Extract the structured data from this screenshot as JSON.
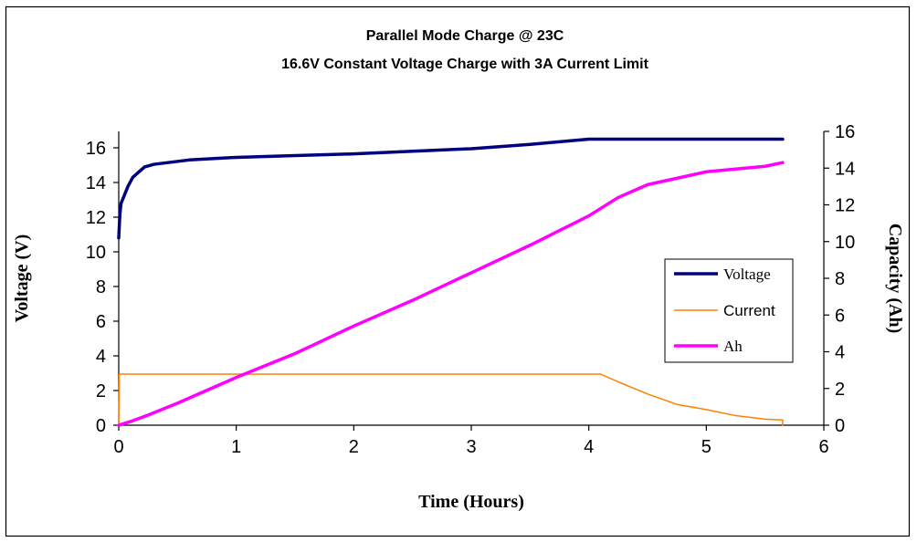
{
  "chart_data": {
    "type": "line",
    "title": "Parallel Mode Charge @ 23C",
    "subtitle": "16.6V Constant Voltage Charge with 3A Current Limit",
    "xlabel": "Time (Hours)",
    "ylabel": "Voltage (V)",
    "y2label": "Capacity (Ah)",
    "xlim": [
      0,
      6
    ],
    "ylim": [
      0,
      17
    ],
    "y2lim": [
      0,
      16
    ],
    "xticks": [
      0,
      1,
      2,
      3,
      4,
      5,
      6
    ],
    "yticks": [
      0,
      2,
      4,
      6,
      8,
      10,
      12,
      14,
      16
    ],
    "y2ticks": [
      0,
      2,
      4,
      6,
      8,
      10,
      12,
      14,
      16
    ],
    "grid": false,
    "legend_position": "right",
    "series": [
      {
        "name": "Voltage",
        "axis": "left",
        "color": "#000080",
        "points": [
          [
            0,
            10.8
          ],
          [
            0.01,
            12.2
          ],
          [
            0.02,
            12.8
          ],
          [
            0.05,
            13.3
          ],
          [
            0.08,
            13.8
          ],
          [
            0.12,
            14.3
          ],
          [
            0.17,
            14.6
          ],
          [
            0.22,
            14.9
          ],
          [
            0.3,
            15.05
          ],
          [
            0.6,
            15.3
          ],
          [
            1.0,
            15.45
          ],
          [
            1.5,
            15.55
          ],
          [
            2.0,
            15.65
          ],
          [
            2.5,
            15.8
          ],
          [
            3.0,
            15.95
          ],
          [
            3.5,
            16.2
          ],
          [
            4.0,
            16.5
          ],
          [
            4.5,
            16.5
          ],
          [
            5.0,
            16.5
          ],
          [
            5.65,
            16.5
          ]
        ]
      },
      {
        "name": "Current",
        "axis": "left",
        "color": "#FF8000",
        "points": [
          [
            0,
            0
          ],
          [
            0.005,
            2.95
          ],
          [
            1.0,
            2.95
          ],
          [
            2.0,
            2.95
          ],
          [
            3.0,
            2.95
          ],
          [
            4.0,
            2.95
          ],
          [
            4.1,
            2.95
          ],
          [
            4.25,
            2.5
          ],
          [
            4.5,
            1.8
          ],
          [
            4.75,
            1.2
          ],
          [
            5.0,
            0.9
          ],
          [
            5.25,
            0.55
          ],
          [
            5.5,
            0.35
          ],
          [
            5.65,
            0.3
          ],
          [
            5.65,
            0.0
          ]
        ]
      },
      {
        "name": "Ah",
        "axis": "right",
        "color": "#FF00FF",
        "points": [
          [
            0,
            0
          ],
          [
            0.1,
            0.2
          ],
          [
            0.25,
            0.55
          ],
          [
            0.5,
            1.2
          ],
          [
            1.0,
            2.6
          ],
          [
            1.5,
            3.9
          ],
          [
            2.0,
            5.4
          ],
          [
            2.5,
            6.8
          ],
          [
            3.0,
            8.3
          ],
          [
            3.5,
            9.8
          ],
          [
            4.0,
            11.4
          ],
          [
            4.25,
            12.4
          ],
          [
            4.5,
            13.1
          ],
          [
            5.0,
            13.8
          ],
          [
            5.5,
            14.1
          ],
          [
            5.65,
            14.3
          ]
        ]
      }
    ]
  }
}
